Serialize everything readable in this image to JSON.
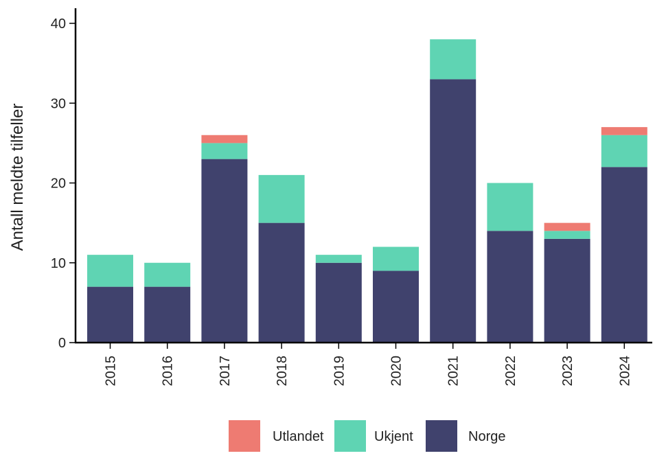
{
  "chart_data": {
    "type": "bar",
    "stacked": true,
    "categories": [
      "2015",
      "2016",
      "2017",
      "2018",
      "2019",
      "2020",
      "2021",
      "2022",
      "2023",
      "2024"
    ],
    "series": [
      {
        "name": "Norge",
        "color": "#40426d",
        "values": [
          7,
          7,
          23,
          15,
          10,
          9,
          33,
          14,
          13,
          22
        ]
      },
      {
        "name": "Ukjent",
        "color": "#5fd4b3",
        "values": [
          4,
          3,
          2,
          6,
          1,
          3,
          5,
          6,
          1,
          4
        ]
      },
      {
        "name": "Utlandet",
        "color": "#ee7b72",
        "values": [
          0,
          0,
          1,
          0,
          0,
          0,
          0,
          0,
          1,
          1
        ]
      }
    ],
    "xlabel": "",
    "ylabel": "Antall meldte tilfeller",
    "ylim": [
      0,
      40
    ],
    "yticks": [
      0,
      10,
      20,
      30,
      40
    ],
    "grid": false,
    "legend": {
      "placement": "bottom-center",
      "order": [
        "Utlandet",
        "Ukjent",
        "Norge"
      ]
    }
  }
}
